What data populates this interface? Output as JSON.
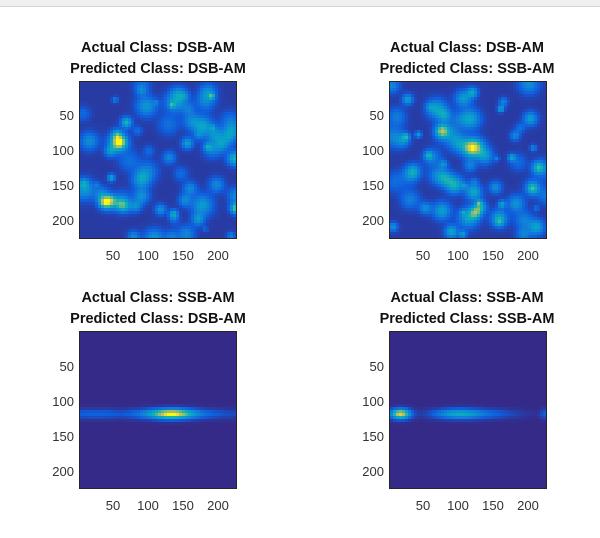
{
  "figure": {
    "panels": [
      {
        "id": "p1",
        "title_line1": "Actual Class: DSB-AM",
        "title_line2": "Predicted Class: DSB-AM",
        "pattern": "noise",
        "xticks": [
          "50",
          "100",
          "150",
          "200"
        ],
        "yticks": [
          "50",
          "100",
          "150",
          "200"
        ]
      },
      {
        "id": "p2",
        "title_line1": "Actual Class: DSB-AM",
        "title_line2": "Predicted Class: SSB-AM",
        "pattern": "noise",
        "xticks": [
          "50",
          "100",
          "150",
          "200"
        ],
        "yticks": [
          "50",
          "100",
          "150",
          "200"
        ]
      },
      {
        "id": "p3",
        "title_line1": "Actual Class: SSB-AM",
        "title_line2": "Predicted Class: DSB-AM",
        "pattern": "band-center",
        "xticks": [
          "50",
          "100",
          "150",
          "200"
        ],
        "yticks": [
          "50",
          "100",
          "150",
          "200"
        ]
      },
      {
        "id": "p4",
        "title_line1": "Actual Class: SSB-AM",
        "title_line2": "Predicted Class: SSB-AM",
        "pattern": "band-left",
        "xticks": [
          "50",
          "100",
          "150",
          "200"
        ],
        "yticks": [
          "50",
          "100",
          "150",
          "200"
        ]
      }
    ]
  },
  "chart_data": [
    {
      "type": "heatmap",
      "title": "Actual Class: DSB-AM\nPredicted Class: DSB-AM",
      "xlim": [
        1,
        224
      ],
      "ylim": [
        1,
        224
      ],
      "xticks": [
        50,
        100,
        150,
        200
      ],
      "yticks": [
        50,
        100,
        150,
        200
      ],
      "y_direction": "reverse",
      "colormap": "parula",
      "description_values": "diffuse blotchy noise; brightest spots near (65,55) and (222,110)"
    },
    {
      "type": "heatmap",
      "title": "Actual Class: DSB-AM\nPredicted Class: SSB-AM",
      "xlim": [
        1,
        224
      ],
      "ylim": [
        1,
        224
      ],
      "xticks": [
        50,
        100,
        150,
        200
      ],
      "yticks": [
        50,
        100,
        150,
        200
      ],
      "y_direction": "reverse",
      "colormap": "parula",
      "description_values": "diffuse blotchy noise; bright spots near (120,20), (215,120), (125,185)"
    },
    {
      "type": "heatmap",
      "title": "Actual Class: SSB-AM\nPredicted Class: DSB-AM",
      "xlim": [
        1,
        224
      ],
      "ylim": [
        1,
        224
      ],
      "xticks": [
        50,
        100,
        150,
        200
      ],
      "yticks": [
        50,
        100,
        150,
        200
      ],
      "y_direction": "reverse",
      "colormap": "parula",
      "description_values": "horizontal band at y≈115, peak near x≈130"
    },
    {
      "type": "heatmap",
      "title": "Actual Class: SSB-AM\nPredicted Class: SSB-AM",
      "xlim": [
        1,
        224
      ],
      "ylim": [
        1,
        224
      ],
      "xticks": [
        50,
        100,
        150,
        200
      ],
      "yticks": [
        50,
        100,
        150,
        200
      ],
      "y_direction": "reverse",
      "colormap": "parula",
      "description_values": "horizontal band at y≈115, peak near x≈15, secondary near x≈95"
    }
  ]
}
